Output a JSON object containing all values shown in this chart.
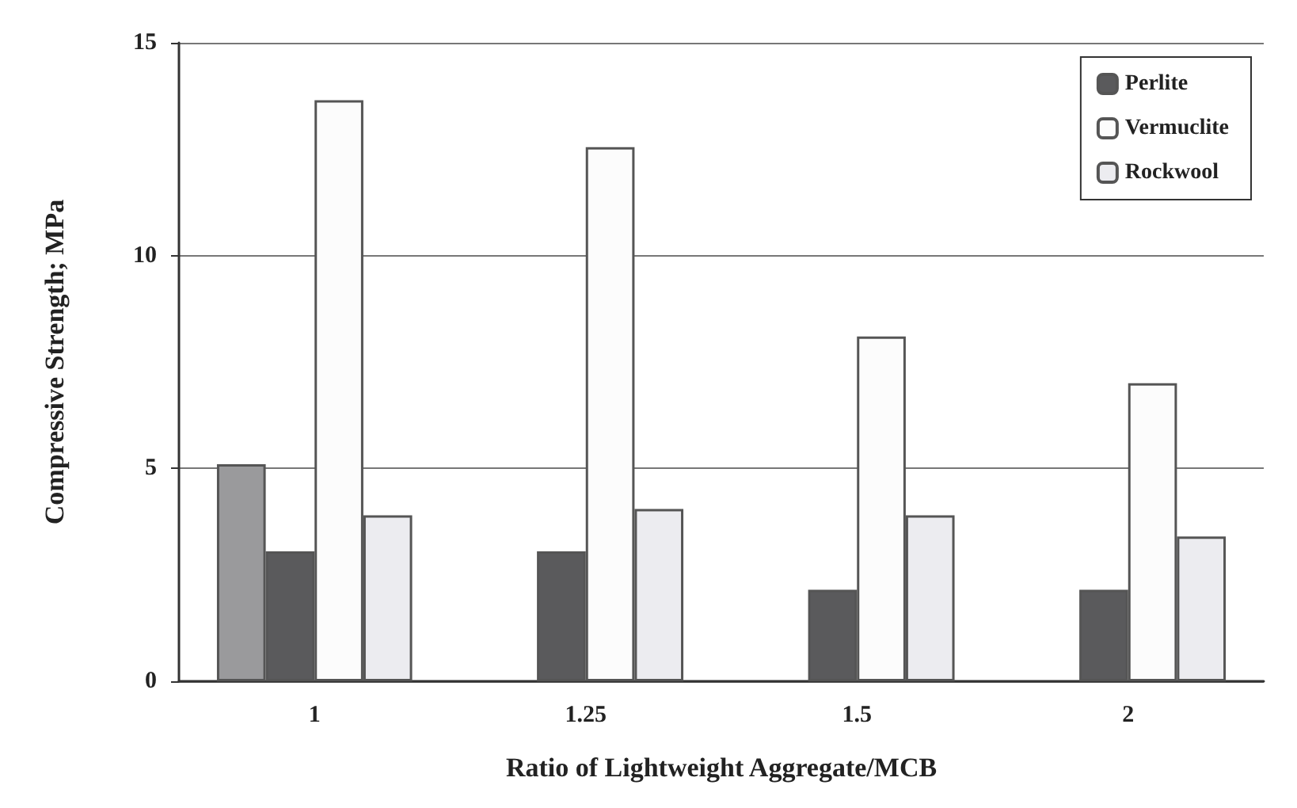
{
  "chart_data": {
    "type": "bar",
    "xlabel": "Ratio of Lightweight Aggregate/MCB",
    "ylabel": "Compressive Strength; MPa",
    "categories": [
      "1",
      "1.25",
      "1.5",
      "2"
    ],
    "series": [
      {
        "color": "#9a9a9c",
        "values": [
          5.1,
          null,
          null,
          null
        ]
      },
      {
        "name": "Perlite",
        "color": "#5a5a5c",
        "values": [
          3.05,
          3.05,
          2.15,
          2.15
        ]
      },
      {
        "name": "Vermuclite",
        "color": "#fcfcfc",
        "values": [
          13.65,
          12.55,
          8.1,
          7.0
        ]
      },
      {
        "name": "Rockwool",
        "color": "#ececf0",
        "values": [
          3.9,
          4.05,
          3.9,
          3.4
        ]
      }
    ],
    "ylim": [
      0,
      15
    ],
    "yticks": [
      0,
      5,
      10,
      15
    ],
    "grid": "y",
    "legend": "top right"
  }
}
